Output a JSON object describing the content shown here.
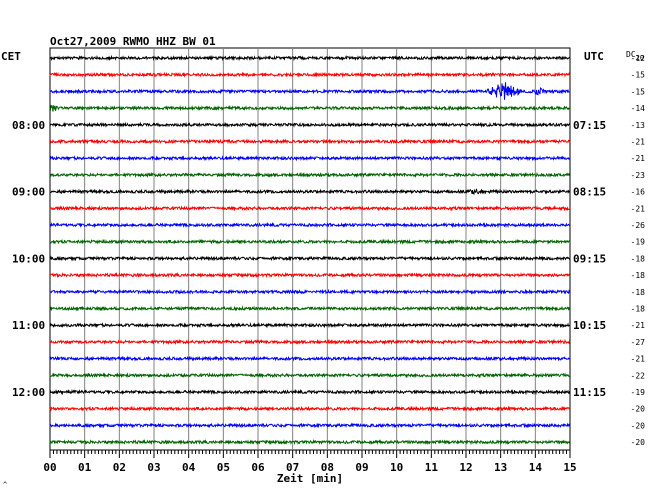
{
  "chart_data": {
    "type": "line",
    "title": "Oct27,2009   RWMO HHZ BW 01",
    "left_axis_label": "CET",
    "right_axis_label": "UTC",
    "dc_label": "DC",
    "dc_value": "20",
    "xlabel": "Zeit [min]",
    "x_ticks": [
      "00",
      "01",
      "02",
      "03",
      "04",
      "05",
      "06",
      "07",
      "08",
      "09",
      "10",
      "11",
      "12",
      "13",
      "14",
      "15"
    ],
    "xlim": [
      0,
      15
    ],
    "left_hour_labels": [
      {
        "row": 4,
        "text": "08:00"
      },
      {
        "row": 8,
        "text": "09:00"
      },
      {
        "row": 12,
        "text": "10:00"
      },
      {
        "row": 16,
        "text": "11:00"
      },
      {
        "row": 20,
        "text": "12:00"
      }
    ],
    "right_hour_labels": [
      {
        "row": 4,
        "text": "07:15"
      },
      {
        "row": 8,
        "text": "08:15"
      },
      {
        "row": 12,
        "text": "09:15"
      },
      {
        "row": 16,
        "text": "10:15"
      },
      {
        "row": 20,
        "text": "11:15"
      }
    ],
    "trace_colors": [
      "#000000",
      "#ff0000",
      "#0000ff",
      "#006400"
    ],
    "dc_offsets": [
      "-12",
      "-15",
      "-15",
      "-14",
      "-13",
      "-21",
      "-21",
      "-23",
      "-16",
      "-21",
      "-26",
      "-19",
      "-18",
      "-18",
      "-18",
      "-18",
      "-21",
      "-27",
      "-21",
      "-22",
      "-19",
      "-20",
      "-20",
      "-20"
    ],
    "events": [
      {
        "row": 2,
        "minute": 13.1,
        "amplitude": 10,
        "duration": 0.6
      },
      {
        "row": 2,
        "minute": 14.1,
        "amplitude": 5,
        "duration": 0.2
      },
      {
        "row": 3,
        "minute": 0.1,
        "amplitude": 4,
        "duration": 0.2
      },
      {
        "row": 8,
        "minute": 12.3,
        "amplitude": 3,
        "duration": 0.5
      }
    ],
    "grid": true
  },
  "footer_mark": "^"
}
